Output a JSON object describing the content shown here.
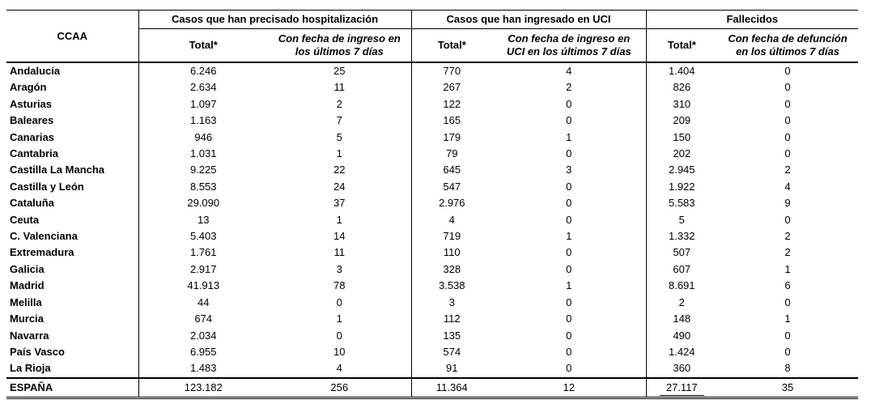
{
  "headers": {
    "ccaa": "CCAA",
    "hosp_group": "Casos que han precisado hospitalización",
    "uci_group": "Casos que han ingresado en UCI",
    "fall_group": "Fallecidos",
    "total": "Total*",
    "hosp_sub_l1": "Con fecha de ingreso en",
    "hosp_sub_l2": "los últimos 7 días",
    "uci_sub_l1": "Con fecha de ingreso en",
    "uci_sub_l2": "UCI en  los últimos 7 días",
    "fall_sub_l1": "Con fecha de defunción",
    "fall_sub_l2": "en  los últimos 7 días"
  },
  "rows": [
    {
      "ccaa": "Andalucía",
      "hosp_total": "6.246",
      "hosp_7d": "25",
      "uci_total": "770",
      "uci_7d": "4",
      "fall_total": "1.404",
      "fall_7d": "0"
    },
    {
      "ccaa": "Aragón",
      "hosp_total": "2.634",
      "hosp_7d": "11",
      "uci_total": "267",
      "uci_7d": "2",
      "fall_total": "826",
      "fall_7d": "0"
    },
    {
      "ccaa": "Asturias",
      "hosp_total": "1.097",
      "hosp_7d": "2",
      "uci_total": "122",
      "uci_7d": "0",
      "fall_total": "310",
      "fall_7d": "0"
    },
    {
      "ccaa": "Baleares",
      "hosp_total": "1.163",
      "hosp_7d": "7",
      "uci_total": "165",
      "uci_7d": "0",
      "fall_total": "209",
      "fall_7d": "0"
    },
    {
      "ccaa": "Canarias",
      "hosp_total": "946",
      "hosp_7d": "5",
      "uci_total": "179",
      "uci_7d": "1",
      "fall_total": "150",
      "fall_7d": "0"
    },
    {
      "ccaa": "Cantabria",
      "hosp_total": "1.031",
      "hosp_7d": "1",
      "uci_total": "79",
      "uci_7d": "0",
      "fall_total": "202",
      "fall_7d": "0"
    },
    {
      "ccaa": "Castilla La Mancha",
      "hosp_total": "9.225",
      "hosp_7d": "22",
      "uci_total": "645",
      "uci_7d": "3",
      "fall_total": "2.945",
      "fall_7d": "2"
    },
    {
      "ccaa": "Castilla y León",
      "hosp_total": "8.553",
      "hosp_7d": "24",
      "uci_total": "547",
      "uci_7d": "0",
      "fall_total": "1.922",
      "fall_7d": "4"
    },
    {
      "ccaa": "Cataluña",
      "hosp_total": "29.090",
      "hosp_7d": "37",
      "uci_total": "2.976",
      "uci_7d": "0",
      "fall_total": "5.583",
      "fall_7d": "9"
    },
    {
      "ccaa": "Ceuta",
      "hosp_total": "13",
      "hosp_7d": "1",
      "uci_total": "4",
      "uci_7d": "0",
      "fall_total": "5",
      "fall_7d": "0"
    },
    {
      "ccaa": "C. Valenciana",
      "hosp_total": "5.403",
      "hosp_7d": "14",
      "uci_total": "719",
      "uci_7d": "1",
      "fall_total": "1.332",
      "fall_7d": "2"
    },
    {
      "ccaa": "Extremadura",
      "hosp_total": "1.761",
      "hosp_7d": "11",
      "uci_total": "110",
      "uci_7d": "0",
      "fall_total": "507",
      "fall_7d": "2"
    },
    {
      "ccaa": "Galicia",
      "hosp_total": "2.917",
      "hosp_7d": "3",
      "uci_total": "328",
      "uci_7d": "0",
      "fall_total": "607",
      "fall_7d": "1"
    },
    {
      "ccaa": "Madrid",
      "hosp_total": "41.913",
      "hosp_7d": "78",
      "uci_total": "3.538",
      "uci_7d": "1",
      "fall_total": "8.691",
      "fall_7d": "6"
    },
    {
      "ccaa": "Melilla",
      "hosp_total": "44",
      "hosp_7d": "0",
      "uci_total": "3",
      "uci_7d": "0",
      "fall_total": "2",
      "fall_7d": "0"
    },
    {
      "ccaa": "Murcia",
      "hosp_total": "674",
      "hosp_7d": "1",
      "uci_total": "112",
      "uci_7d": "0",
      "fall_total": "148",
      "fall_7d": "1"
    },
    {
      "ccaa": "Navarra",
      "hosp_total": "2.034",
      "hosp_7d": "0",
      "uci_total": "135",
      "uci_7d": "0",
      "fall_total": "490",
      "fall_7d": "0"
    },
    {
      "ccaa": "País Vasco",
      "hosp_total": "6.955",
      "hosp_7d": "10",
      "uci_total": "574",
      "uci_7d": "0",
      "fall_total": "1.424",
      "fall_7d": "0"
    },
    {
      "ccaa": "La Rioja",
      "hosp_total": "1.483",
      "hosp_7d": "4",
      "uci_total": "91",
      "uci_7d": "0",
      "fall_total": "360",
      "fall_7d": "8"
    }
  ],
  "total": {
    "ccaa": "ESPAÑA",
    "hosp_total": "123.182",
    "hosp_7d": "256",
    "uci_total": "11.364",
    "uci_7d": "12",
    "fall_total": "27.117",
    "fall_7d": "35"
  }
}
